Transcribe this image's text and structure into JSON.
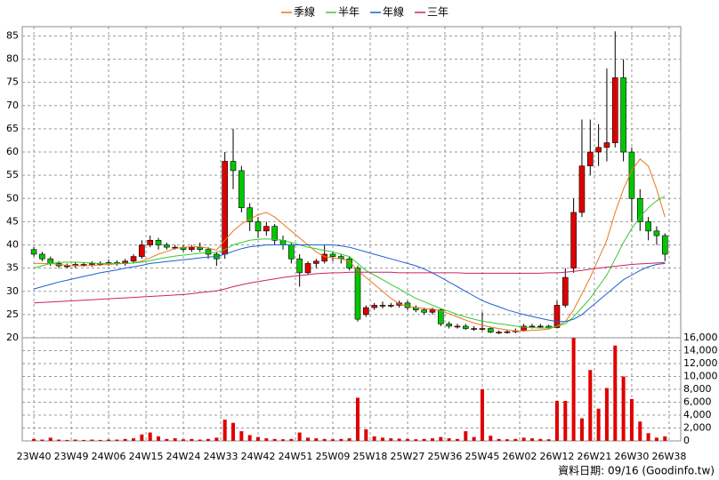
{
  "chart_data": {
    "type": "candlestick",
    "legend": [
      {
        "name": "季線",
        "color": "#e8781e"
      },
      {
        "name": "半年",
        "color": "#33cc33"
      },
      {
        "name": "年線",
        "color": "#1f5fd0"
      },
      {
        "name": "三年",
        "color": "#cc2266"
      }
    ],
    "xlim": [
      -1.4,
      77.9
    ],
    "xticks": [
      {
        "value": 0,
        "label": "23W40"
      },
      {
        "value": 4.5,
        "label": "23W49"
      },
      {
        "value": 9,
        "label": "24W06"
      },
      {
        "value": 13.5,
        "label": "24W15"
      },
      {
        "value": 18,
        "label": "24W24"
      },
      {
        "value": 22.5,
        "label": "24W33"
      },
      {
        "value": 27,
        "label": "24W42"
      },
      {
        "value": 31.5,
        "label": "24W51"
      },
      {
        "value": 36,
        "label": "25W09"
      },
      {
        "value": 40.5,
        "label": "25W18"
      },
      {
        "value": 45,
        "label": "25W27"
      },
      {
        "value": 49.5,
        "label": "25W36"
      },
      {
        "value": 54,
        "label": "25W45"
      },
      {
        "value": 58.5,
        "label": "26W02"
      },
      {
        "value": 63,
        "label": "26W12"
      },
      {
        "value": 67.5,
        "label": "26W21"
      },
      {
        "value": 72,
        "label": "26W30"
      },
      {
        "value": 76.5,
        "label": "26W38"
      }
    ],
    "ylim": [
      20,
      87
    ],
    "yticks": [
      20,
      25,
      30,
      35,
      40,
      45,
      50,
      55,
      60,
      65,
      70,
      75,
      80,
      85
    ],
    "y2lim": [
      0,
      16000
    ],
    "y2ticks": [
      0,
      {
        "value": 2000,
        "label": "2,000"
      },
      {
        "value": 4000,
        "label": "4,000"
      },
      {
        "value": 6000,
        "label": "6,000"
      },
      {
        "value": 8000,
        "label": "8,000"
      },
      {
        "value": 10000,
        "label": "10,000"
      },
      {
        "value": 12000,
        "label": "12,000"
      },
      {
        "value": 14000,
        "label": "14,000"
      },
      {
        "value": 16000,
        "label": "16,000"
      }
    ],
    "grid": true,
    "up_color": "#e00000",
    "down_color": "#00c800",
    "volume_color": "#e00000",
    "open": [
      39,
      38,
      37,
      36,
      35.5,
      35.5,
      35.8,
      35.8,
      36,
      36,
      36.2,
      36,
      36.5,
      37.5,
      40,
      41,
      40,
      39.5,
      39.5,
      39,
      39.5,
      39,
      38,
      38,
      58,
      56,
      48,
      45,
      43,
      44,
      41,
      40,
      37,
      34,
      36,
      36.5,
      38,
      37.5,
      37,
      35,
      25,
      26.5,
      27,
      27,
      27,
      27.5,
      26.5,
      26,
      25.5,
      26,
      23,
      22.5,
      22.5,
      22,
      22,
      22,
      21.2,
      21.2,
      21.3,
      21.5,
      22.5,
      22.5,
      22.5,
      22.2,
      27,
      35,
      47,
      57,
      60,
      61,
      62,
      76,
      60,
      50,
      45,
      43,
      42
    ],
    "high": [
      39.5,
      38.5,
      37.5,
      36.5,
      36,
      36.3,
      36.3,
      36.5,
      36.5,
      36.8,
      36.7,
      37,
      38,
      41,
      42,
      41.5,
      40.5,
      40,
      40,
      40,
      40.5,
      39.5,
      38.5,
      60,
      65,
      57,
      49,
      46,
      45,
      44.5,
      42,
      40.5,
      38,
      36.5,
      37,
      40,
      38.5,
      38,
      37.5,
      35.5,
      27,
      27.5,
      27.8,
      27.5,
      28,
      28,
      27,
      26.5,
      26.5,
      26.2,
      23.5,
      23,
      23,
      22.5,
      25.5,
      22.3,
      21.6,
      21.7,
      22,
      23,
      23,
      23,
      22.8,
      28,
      35,
      50,
      67,
      67,
      66,
      78,
      86,
      80,
      61,
      52,
      46,
      44,
      42.5
    ],
    "low": [
      37.5,
      36.5,
      35.5,
      35,
      35,
      35,
      35.3,
      35.3,
      35.5,
      35.5,
      35.5,
      35.5,
      36,
      37,
      39.5,
      39,
      39,
      39,
      38.5,
      38.5,
      38.5,
      37,
      35.5,
      37,
      52,
      47,
      43,
      41.5,
      42,
      40,
      39,
      36,
      31,
      33.5,
      35,
      36,
      36.5,
      36,
      34.5,
      23.5,
      24.5,
      26,
      26.3,
      26.5,
      26.5,
      26,
      25.5,
      25,
      25,
      22.5,
      22,
      22,
      21.7,
      21.5,
      21.5,
      21,
      20.8,
      20.9,
      21,
      21.3,
      22,
      22,
      21.8,
      22,
      26.5,
      34,
      46,
      55,
      57,
      58,
      61,
      58,
      45,
      43,
      41,
      40,
      36.5
    ],
    "close": [
      38,
      37,
      36,
      35.5,
      35.5,
      35.8,
      35.8,
      36,
      36,
      36.2,
      36,
      36.5,
      37.5,
      40,
      41,
      40,
      39.5,
      39.5,
      39,
      39.5,
      39,
      38,
      37,
      58,
      56,
      48,
      45,
      43,
      44,
      41,
      40,
      37,
      34,
      36,
      36.5,
      38,
      37.5,
      37,
      35,
      24,
      26.5,
      27,
      27,
      27,
      27.5,
      26.5,
      26,
      25.5,
      26,
      23,
      22.5,
      22.5,
      22,
      22,
      22,
      21.2,
      21.2,
      21.3,
      21.5,
      22.5,
      22.5,
      22.5,
      22.2,
      27,
      33,
      47,
      57,
      60,
      61,
      62,
      76,
      60,
      50,
      45,
      43,
      42,
      38
    ],
    "volume": [
      300,
      200,
      500,
      200,
      150,
      200,
      150,
      200,
      150,
      200,
      200,
      300,
      400,
      1000,
      1300,
      700,
      300,
      400,
      250,
      300,
      200,
      300,
      500,
      3300,
      2800,
      1500,
      900,
      600,
      400,
      300,
      250,
      300,
      1300,
      500,
      400,
      300,
      250,
      300,
      400,
      6700,
      1800,
      700,
      500,
      400,
      350,
      300,
      250,
      300,
      400,
      600,
      400,
      300,
      1500,
      600,
      8000,
      800,
      300,
      250,
      300,
      500,
      400,
      300,
      250,
      6200,
      6200,
      16000,
      3500,
      11000,
      5000,
      8200,
      14800,
      10000,
      6500,
      3000,
      1200,
      500,
      700
    ],
    "series": [
      {
        "name": "季線",
        "color": "#e8781e",
        "values": [
          36,
          36,
          36,
          35.8,
          35.6,
          35.5,
          35.5,
          35.6,
          35.7,
          35.8,
          35.9,
          36,
          36.1,
          36.5,
          37.2,
          38,
          38.6,
          39.2,
          39.5,
          39.6,
          39.6,
          39.3,
          38.9,
          41,
          43,
          44.5,
          45.5,
          46.5,
          47,
          46,
          44.5,
          43,
          41.5,
          40,
          38.5,
          37.5,
          37.2,
          37,
          36.5,
          34.5,
          33,
          31.5,
          30,
          28.5,
          27.3,
          26.8,
          26.5,
          26.3,
          26.2,
          25.8,
          25.2,
          24.5,
          23.8,
          23.2,
          22.7,
          22.3,
          22,
          21.7,
          21.5,
          21.5,
          21.6,
          21.7,
          21.9,
          22.5,
          23.5,
          26,
          29.5,
          33,
          37,
          41,
          47,
          52,
          56,
          58.5,
          57,
          52,
          46
        ]
      },
      {
        "name": "半年",
        "color": "#33cc33",
        "values": [
          35,
          35.5,
          36,
          36.2,
          36.3,
          36.3,
          36.2,
          36.1,
          36,
          36,
          36,
          36,
          36.1,
          36.3,
          36.6,
          37,
          37.3,
          37.6,
          37.8,
          38,
          38.2,
          38.3,
          38.4,
          39,
          40,
          40.5,
          41,
          41.2,
          41.3,
          41.2,
          41,
          40.5,
          40,
          39.5,
          39.2,
          38.8,
          38.5,
          38,
          37.5,
          36,
          34.5,
          33.5,
          32.5,
          31.5,
          30.5,
          29.5,
          28.5,
          27.8,
          27,
          26.3,
          25.7,
          25,
          24.5,
          24,
          23.6,
          23.3,
          23,
          22.8,
          22.5,
          22.3,
          22.2,
          22.1,
          22.1,
          22.5,
          23,
          24.5,
          26.5,
          28.5,
          31,
          33.5,
          37,
          40.5,
          43.5,
          46,
          48,
          49.5,
          50.5
        ]
      },
      {
        "name": "年線",
        "color": "#1f5fd0",
        "values": [
          30.5,
          31,
          31.5,
          32,
          32.4,
          32.8,
          33.2,
          33.6,
          34,
          34.3,
          34.6,
          35,
          35.3,
          35.6,
          36,
          36.2,
          36.4,
          36.6,
          36.8,
          37,
          37.2,
          37.4,
          37.5,
          38,
          38.6,
          39.2,
          39.6,
          39.8,
          40,
          40,
          40,
          40,
          40,
          40,
          40,
          40,
          40,
          39.8,
          39.5,
          39,
          38.5,
          38,
          37.5,
          37,
          36.5,
          36,
          35.5,
          34.8,
          34,
          33,
          32,
          31,
          30,
          29,
          28,
          27.3,
          26.7,
          26,
          25.5,
          25,
          24.6,
          24.2,
          23.8,
          23.5,
          23.5,
          24,
          25,
          26.5,
          28,
          29.5,
          31,
          32.5,
          33.5,
          34.5,
          35.3,
          35.8,
          36
        ]
      },
      {
        "name": "三年",
        "color": "#cc2266",
        "values": [
          27.5,
          27.6,
          27.7,
          27.8,
          27.9,
          28,
          28.1,
          28.2,
          28.3,
          28.4,
          28.5,
          28.6,
          28.7,
          28.8,
          28.9,
          29,
          29.1,
          29.2,
          29.3,
          29.5,
          29.7,
          29.9,
          30.1,
          30.5,
          31,
          31.4,
          31.8,
          32.1,
          32.4,
          32.7,
          33,
          33.2,
          33.4,
          33.6,
          33.8,
          33.9,
          34,
          34,
          34.1,
          34.1,
          34.1,
          34.1,
          34.1,
          34.1,
          34,
          34,
          34,
          34,
          34,
          34,
          34,
          34,
          33.9,
          33.9,
          33.9,
          33.9,
          33.9,
          33.9,
          33.9,
          33.9,
          33.9,
          33.9,
          34,
          34,
          34.1,
          34.3,
          34.5,
          34.8,
          35,
          35.2,
          35.4,
          35.6,
          35.8,
          35.9,
          36,
          36.1,
          36.2
        ]
      }
    ]
  },
  "footer": "資料日期: 09/16 (Goodinfo.tw)"
}
